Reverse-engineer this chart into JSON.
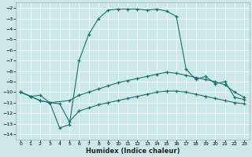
{
  "xlabel": "Humidex (Indice chaleur)",
  "bg_color": "#cde8e8",
  "line_color": "#1a7070",
  "xlim": [
    -0.5,
    23.5
  ],
  "ylim": [
    -14.5,
    -1.5
  ],
  "xticks": [
    0,
    1,
    2,
    3,
    4,
    5,
    6,
    7,
    8,
    9,
    10,
    11,
    12,
    13,
    14,
    15,
    16,
    17,
    18,
    19,
    20,
    21,
    22,
    23
  ],
  "yticks": [
    -2,
    -3,
    -4,
    -5,
    -6,
    -7,
    -8,
    -9,
    -10,
    -11,
    -12,
    -13,
    -14
  ],
  "line1_x": [
    0,
    1,
    2,
    3,
    4,
    5,
    6,
    7,
    8,
    9,
    10,
    11,
    12,
    13,
    14,
    15,
    16,
    17,
    18,
    19,
    20,
    21,
    22,
    23
  ],
  "line1_y": [
    -10.0,
    -10.4,
    -10.3,
    -11.0,
    -13.4,
    -13.1,
    -7.0,
    -4.5,
    -3.0,
    -2.2,
    -2.1,
    -2.1,
    -2.1,
    -2.2,
    -2.1,
    -2.3,
    -2.8,
    -7.8,
    -8.8,
    -8.5,
    -9.2,
    -9.0,
    -10.5,
    -10.7
  ],
  "line2_x": [
    0,
    1,
    2,
    3,
    5,
    6,
    7,
    8,
    9,
    10,
    11,
    12,
    13,
    14,
    15,
    16,
    17,
    18,
    19,
    20,
    21,
    22,
    23
  ],
  "line2_y": [
    -10.0,
    -10.4,
    -10.8,
    -11.0,
    -10.8,
    -10.3,
    -10.0,
    -9.7,
    -9.4,
    -9.1,
    -8.9,
    -8.7,
    -8.5,
    -8.3,
    -8.1,
    -8.2,
    -8.4,
    -8.6,
    -8.8,
    -9.0,
    -9.3,
    -10.0,
    -10.5
  ],
  "line3_x": [
    0,
    1,
    2,
    3,
    4,
    5,
    6,
    7,
    8,
    9,
    10,
    11,
    12,
    13,
    14,
    15,
    16,
    17,
    18,
    19,
    20,
    21,
    22,
    23
  ],
  "line3_y": [
    -10.0,
    -10.4,
    -10.8,
    -11.0,
    -11.1,
    -12.8,
    -11.8,
    -11.5,
    -11.2,
    -11.0,
    -10.8,
    -10.6,
    -10.4,
    -10.2,
    -10.0,
    -9.9,
    -9.9,
    -10.0,
    -10.2,
    -10.4,
    -10.6,
    -10.8,
    -11.0,
    -11.1
  ]
}
